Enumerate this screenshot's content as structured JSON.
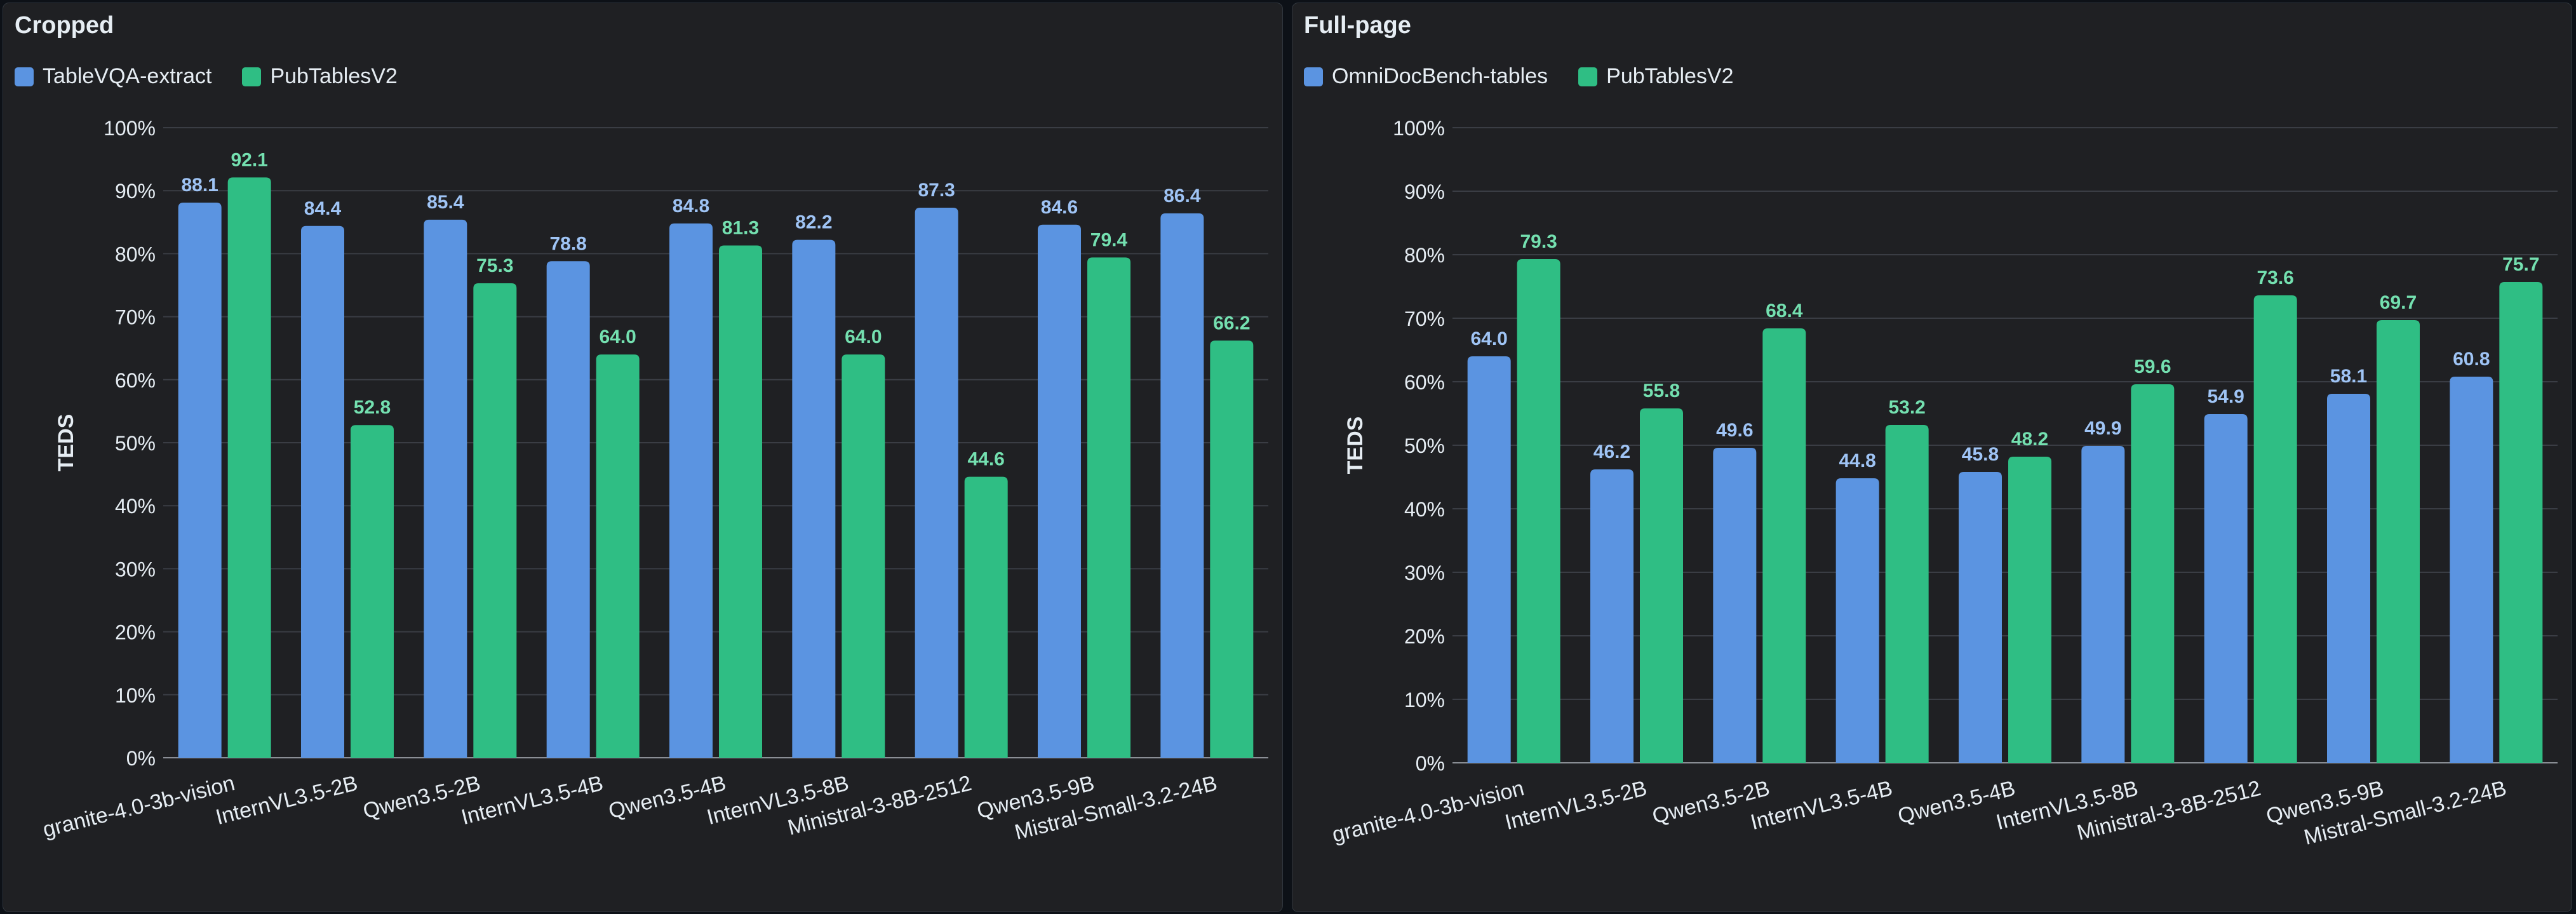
{
  "colors": {
    "series_a": "#5b94e1",
    "series_b": "#2fbe84",
    "label_a": "#9fc4f5",
    "label_b": "#74e0b0",
    "text": "#e6edf3",
    "grid": "#3a3d44"
  },
  "chart_data": [
    {
      "type": "bar",
      "title": "Cropped",
      "ylabel": "TEDS",
      "xlabel": "",
      "ylim": [
        0,
        100
      ],
      "ytick_format": "percent",
      "grid": true,
      "legend_position": "top-left",
      "categories": [
        "granite-4.0-3b-vision",
        "InternVL3.5-2B",
        "Qwen3.5-2B",
        "InternVL3.5-4B",
        "Qwen3.5-4B",
        "InternVL3.5-8B",
        "Ministral-3-8B-2512",
        "Qwen3.5-9B",
        "Mistral-Small-3.2-24B"
      ],
      "series": [
        {
          "name": "TableVQA-extract",
          "color": "#5b94e1",
          "values": [
            88.1,
            84.4,
            85.4,
            78.8,
            84.8,
            82.2,
            87.3,
            84.6,
            86.4
          ]
        },
        {
          "name": "PubTablesV2",
          "color": "#2fbe84",
          "values": [
            92.1,
            52.8,
            75.3,
            64.0,
            81.3,
            64.0,
            44.6,
            79.4,
            66.2
          ]
        }
      ]
    },
    {
      "type": "bar",
      "title": "Full-page",
      "ylabel": "TEDS",
      "xlabel": "",
      "ylim": [
        0,
        100
      ],
      "ytick_format": "percent",
      "grid": true,
      "legend_position": "top-left",
      "categories": [
        "granite-4.0-3b-vision",
        "InternVL3.5-2B",
        "Qwen3.5-2B",
        "InternVL3.5-4B",
        "Qwen3.5-4B",
        "InternVL3.5-8B",
        "Ministral-3-8B-2512",
        "Qwen3.5-9B",
        "Mistral-Small-3.2-24B"
      ],
      "series": [
        {
          "name": "OmniDocBench-tables",
          "color": "#5b94e1",
          "values": [
            64.0,
            46.2,
            49.6,
            44.8,
            45.8,
            49.9,
            54.9,
            58.1,
            60.8
          ]
        },
        {
          "name": "PubTablesV2",
          "color": "#2fbe84",
          "values": [
            79.3,
            55.8,
            68.4,
            53.2,
            48.2,
            59.6,
            73.6,
            69.7,
            75.7
          ]
        }
      ]
    }
  ]
}
